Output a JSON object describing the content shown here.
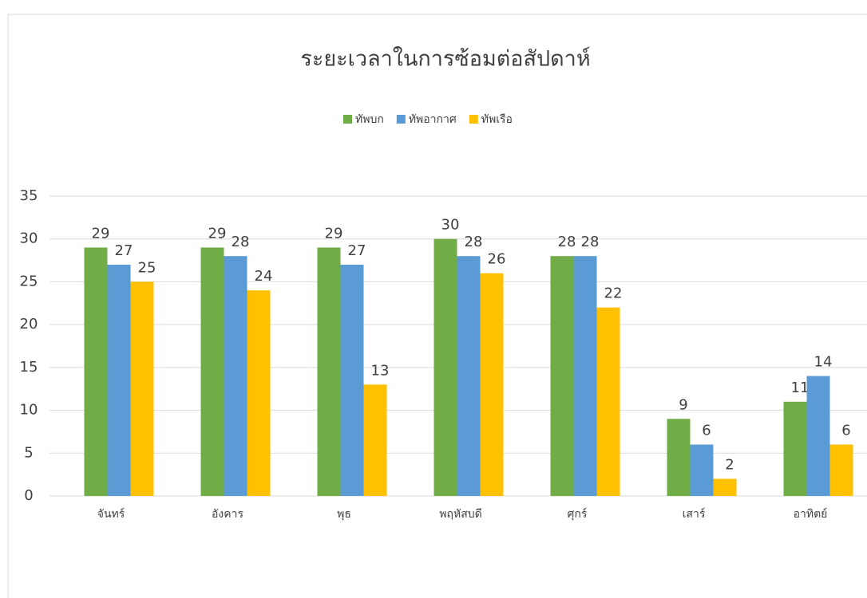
{
  "chart_data": {
    "type": "bar",
    "title": "ระยะเวลาในการซ้อมต่อสัปดาห์",
    "categories": [
      "จันทร์",
      "อังคาร",
      "พุธ",
      "พฤหัสบดี",
      "ศุกร์",
      "เสาร์",
      "อาทิตย์"
    ],
    "series": [
      {
        "name": "ทัพบก",
        "color": "#70ad47",
        "values": [
          29,
          29,
          29,
          30,
          28,
          9,
          11
        ]
      },
      {
        "name": "ทัพอากาศ",
        "color": "#5b9bd5",
        "values": [
          27,
          28,
          27,
          28,
          28,
          6,
          14
        ]
      },
      {
        "name": "ทัพเรือ",
        "color": "#ffc000",
        "values": [
          25,
          24,
          13,
          26,
          22,
          2,
          6
        ]
      }
    ],
    "ylim": [
      0,
      35
    ],
    "yticks": [
      0,
      5,
      10,
      15,
      20,
      25,
      30,
      35
    ],
    "grid": true,
    "legend": "top"
  }
}
